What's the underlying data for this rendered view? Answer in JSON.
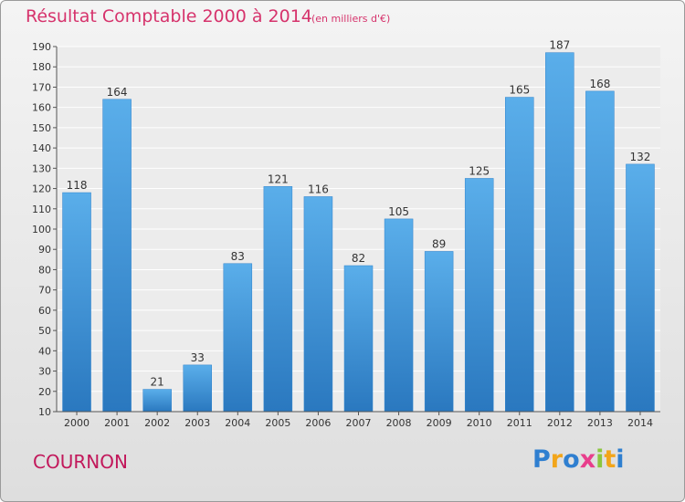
{
  "chart_data": {
    "type": "bar",
    "title": "Résultat Comptable 2000 à 2014",
    "subtitle": "(en milliers d'€)",
    "categories": [
      "2000",
      "2001",
      "2002",
      "2003",
      "2004",
      "2005",
      "2006",
      "2007",
      "2008",
      "2009",
      "2010",
      "2011",
      "2012",
      "2013",
      "2014"
    ],
    "values": [
      118,
      164,
      21,
      33,
      83,
      121,
      116,
      82,
      105,
      89,
      125,
      165,
      187,
      168,
      132
    ],
    "ylim": [
      10,
      190
    ],
    "yticks": [
      10,
      20,
      30,
      40,
      50,
      60,
      70,
      80,
      90,
      100,
      110,
      120,
      130,
      140,
      150,
      160,
      170,
      180,
      190
    ],
    "grid": true,
    "bar_color": "#3a8fd6",
    "xlabel": "",
    "ylabel": ""
  },
  "footer": {
    "city": "COURNON",
    "logo_letters": [
      "P",
      "r",
      "o",
      "x",
      "i",
      "t",
      "i"
    ],
    "logo_colors": [
      "#2f7fd0",
      "#f2a51a",
      "#2f7fd0",
      "#e83e8c",
      "#8cc63f",
      "#f2a51a",
      "#2f7fd0"
    ]
  }
}
